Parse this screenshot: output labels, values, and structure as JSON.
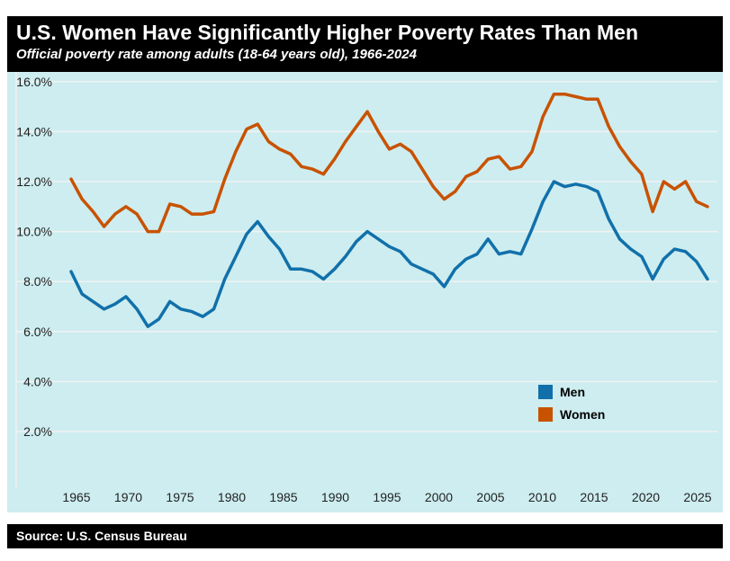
{
  "chart_data": {
    "type": "line",
    "title": "U.S. Women Have Significantly Higher Poverty Rates Than Men",
    "subtitle": "Official poverty rate among adults (18-64 years old), 1966-2024",
    "source": "Source: U.S. Census Bureau",
    "x": [
      1966,
      1967,
      1968,
      1969,
      1970,
      1971,
      1972,
      1973,
      1974,
      1975,
      1976,
      1977,
      1978,
      1979,
      1980,
      1981,
      1982,
      1983,
      1984,
      1985,
      1986,
      1987,
      1988,
      1989,
      1990,
      1991,
      1992,
      1993,
      1994,
      1995,
      1996,
      1997,
      1998,
      1999,
      2000,
      2001,
      2002,
      2003,
      2004,
      2005,
      2006,
      2007,
      2008,
      2009,
      2010,
      2011,
      2012,
      2013,
      2014,
      2015,
      2016,
      2017,
      2018,
      2019,
      2020,
      2021,
      2022,
      2023,
      2024
    ],
    "series": [
      {
        "name": "Men",
        "color": "#1170aa",
        "values": [
          8.4,
          7.5,
          7.2,
          6.9,
          7.1,
          7.4,
          6.9,
          6.2,
          6.5,
          7.2,
          6.9,
          6.8,
          6.6,
          6.9,
          8.1,
          9.0,
          9.9,
          10.4,
          9.8,
          9.3,
          8.5,
          8.5,
          8.4,
          8.1,
          8.5,
          9.0,
          9.6,
          10.0,
          9.7,
          9.4,
          9.2,
          8.7,
          8.5,
          8.3,
          7.8,
          8.5,
          8.9,
          9.1,
          9.7,
          9.1,
          9.2,
          9.1,
          10.1,
          11.2,
          12.0,
          11.8,
          11.9,
          11.8,
          11.6,
          10.5,
          9.7,
          9.3,
          9.0,
          8.1,
          8.9,
          9.3,
          9.2,
          8.8,
          8.1
        ]
      },
      {
        "name": "Women",
        "color": "#c85200",
        "values": [
          12.1,
          11.3,
          10.8,
          10.2,
          10.7,
          11.0,
          10.7,
          10.0,
          10.0,
          11.1,
          11.0,
          10.7,
          10.7,
          10.8,
          12.1,
          13.2,
          14.1,
          14.3,
          13.6,
          13.3,
          13.1,
          12.6,
          12.5,
          12.3,
          12.9,
          13.6,
          14.2,
          14.8,
          14.0,
          13.3,
          13.5,
          13.2,
          12.5,
          11.8,
          11.3,
          11.6,
          12.2,
          12.4,
          12.9,
          13.0,
          12.5,
          12.6,
          13.2,
          14.6,
          15.5,
          15.5,
          15.4,
          15.3,
          15.3,
          14.2,
          13.4,
          12.8,
          12.3,
          10.8,
          12.0,
          11.7,
          12.0,
          11.2,
          11.0
        ]
      }
    ],
    "y_ticks": [
      "2.0%",
      "4.0%",
      "6.0%",
      "8.0%",
      "10.0%",
      "12.0%",
      "14.0%",
      "16.0%"
    ],
    "y_tick_values": [
      2,
      4,
      6,
      8,
      10,
      12,
      14,
      16
    ],
    "x_ticks": [
      "1965",
      "1970",
      "1975",
      "1980",
      "1985",
      "1990",
      "1995",
      "2000",
      "2005",
      "2010",
      "2015",
      "2020",
      "2025"
    ],
    "ylim": [
      0,
      16.5
    ],
    "grid": true,
    "legend": "lower-right",
    "background": "#cdedf0"
  }
}
